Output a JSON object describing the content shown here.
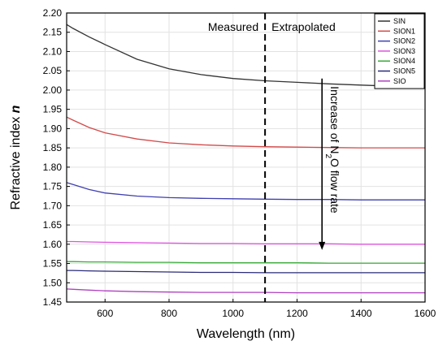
{
  "chart_data": {
    "type": "line",
    "title": "",
    "xlabel": "Wavelength (nm)",
    "ylabel_main": "Refractive index ",
    "ylabel_italic": "n",
    "xlim": [
      480,
      1600
    ],
    "ylim": [
      1.45,
      2.2
    ],
    "x_ticks": [
      600,
      800,
      1000,
      1200,
      1400,
      1600
    ],
    "x_tick_labels": [
      "600",
      "800",
      "1000",
      "1200",
      "1400",
      "1600"
    ],
    "y_ticks": [
      1.45,
      1.5,
      1.55,
      1.6,
      1.65,
      1.7,
      1.75,
      1.8,
      1.85,
      1.9,
      1.95,
      2.0,
      2.05,
      2.1,
      2.15,
      2.2
    ],
    "y_tick_labels": [
      "1.45",
      "1.50",
      "1.55",
      "1.60",
      "1.65",
      "1.70",
      "1.75",
      "1.80",
      "1.85",
      "1.90",
      "1.95",
      "2.00",
      "2.05",
      "2.10",
      "2.15",
      "2.20"
    ],
    "divider_x": 1100,
    "annotations": {
      "measured": "Measured",
      "extrapolated": "Extrapolated",
      "arrow_label_prefix": "Increase of N",
      "arrow_label_sub": "2",
      "arrow_label_suffix": "O flow rate"
    },
    "legend_position": "top-right",
    "x": [
      480,
      500,
      550,
      600,
      700,
      800,
      900,
      1000,
      1100,
      1200,
      1300,
      1400,
      1500,
      1600
    ],
    "series": [
      {
        "name": "SIN",
        "color": "#333333",
        "values": [
          2.17,
          2.16,
          2.138,
          2.118,
          2.08,
          2.055,
          2.04,
          2.03,
          2.024,
          2.02,
          2.016,
          2.013,
          2.01,
          2.008
        ]
      },
      {
        "name": "SION1",
        "color": "#d24a4a",
        "values": [
          1.93,
          1.922,
          1.903,
          1.889,
          1.873,
          1.863,
          1.858,
          1.855,
          1.853,
          1.852,
          1.851,
          1.85,
          1.85,
          1.85
        ]
      },
      {
        "name": "SION2",
        "color": "#3f3fb0",
        "values": [
          1.76,
          1.755,
          1.742,
          1.733,
          1.725,
          1.721,
          1.719,
          1.718,
          1.717,
          1.716,
          1.716,
          1.715,
          1.715,
          1.715
        ]
      },
      {
        "name": "SION3",
        "color": "#dd55dd",
        "values": [
          1.607,
          1.607,
          1.606,
          1.605,
          1.604,
          1.603,
          1.602,
          1.602,
          1.601,
          1.601,
          1.601,
          1.6,
          1.6,
          1.6
        ]
      },
      {
        "name": "SION4",
        "color": "#3aaa3a",
        "values": [
          1.555,
          1.555,
          1.554,
          1.554,
          1.553,
          1.553,
          1.552,
          1.552,
          1.552,
          1.552,
          1.551,
          1.551,
          1.551,
          1.551
        ]
      },
      {
        "name": "SION5",
        "color": "#2a2a7a",
        "values": [
          1.532,
          1.532,
          1.531,
          1.53,
          1.529,
          1.528,
          1.527,
          1.527,
          1.526,
          1.526,
          1.526,
          1.526,
          1.526,
          1.526
        ]
      },
      {
        "name": "SIO",
        "color": "#b040c0",
        "values": [
          1.484,
          1.483,
          1.481,
          1.479,
          1.477,
          1.476,
          1.475,
          1.475,
          1.475,
          1.474,
          1.474,
          1.474,
          1.474,
          1.474
        ]
      }
    ]
  }
}
